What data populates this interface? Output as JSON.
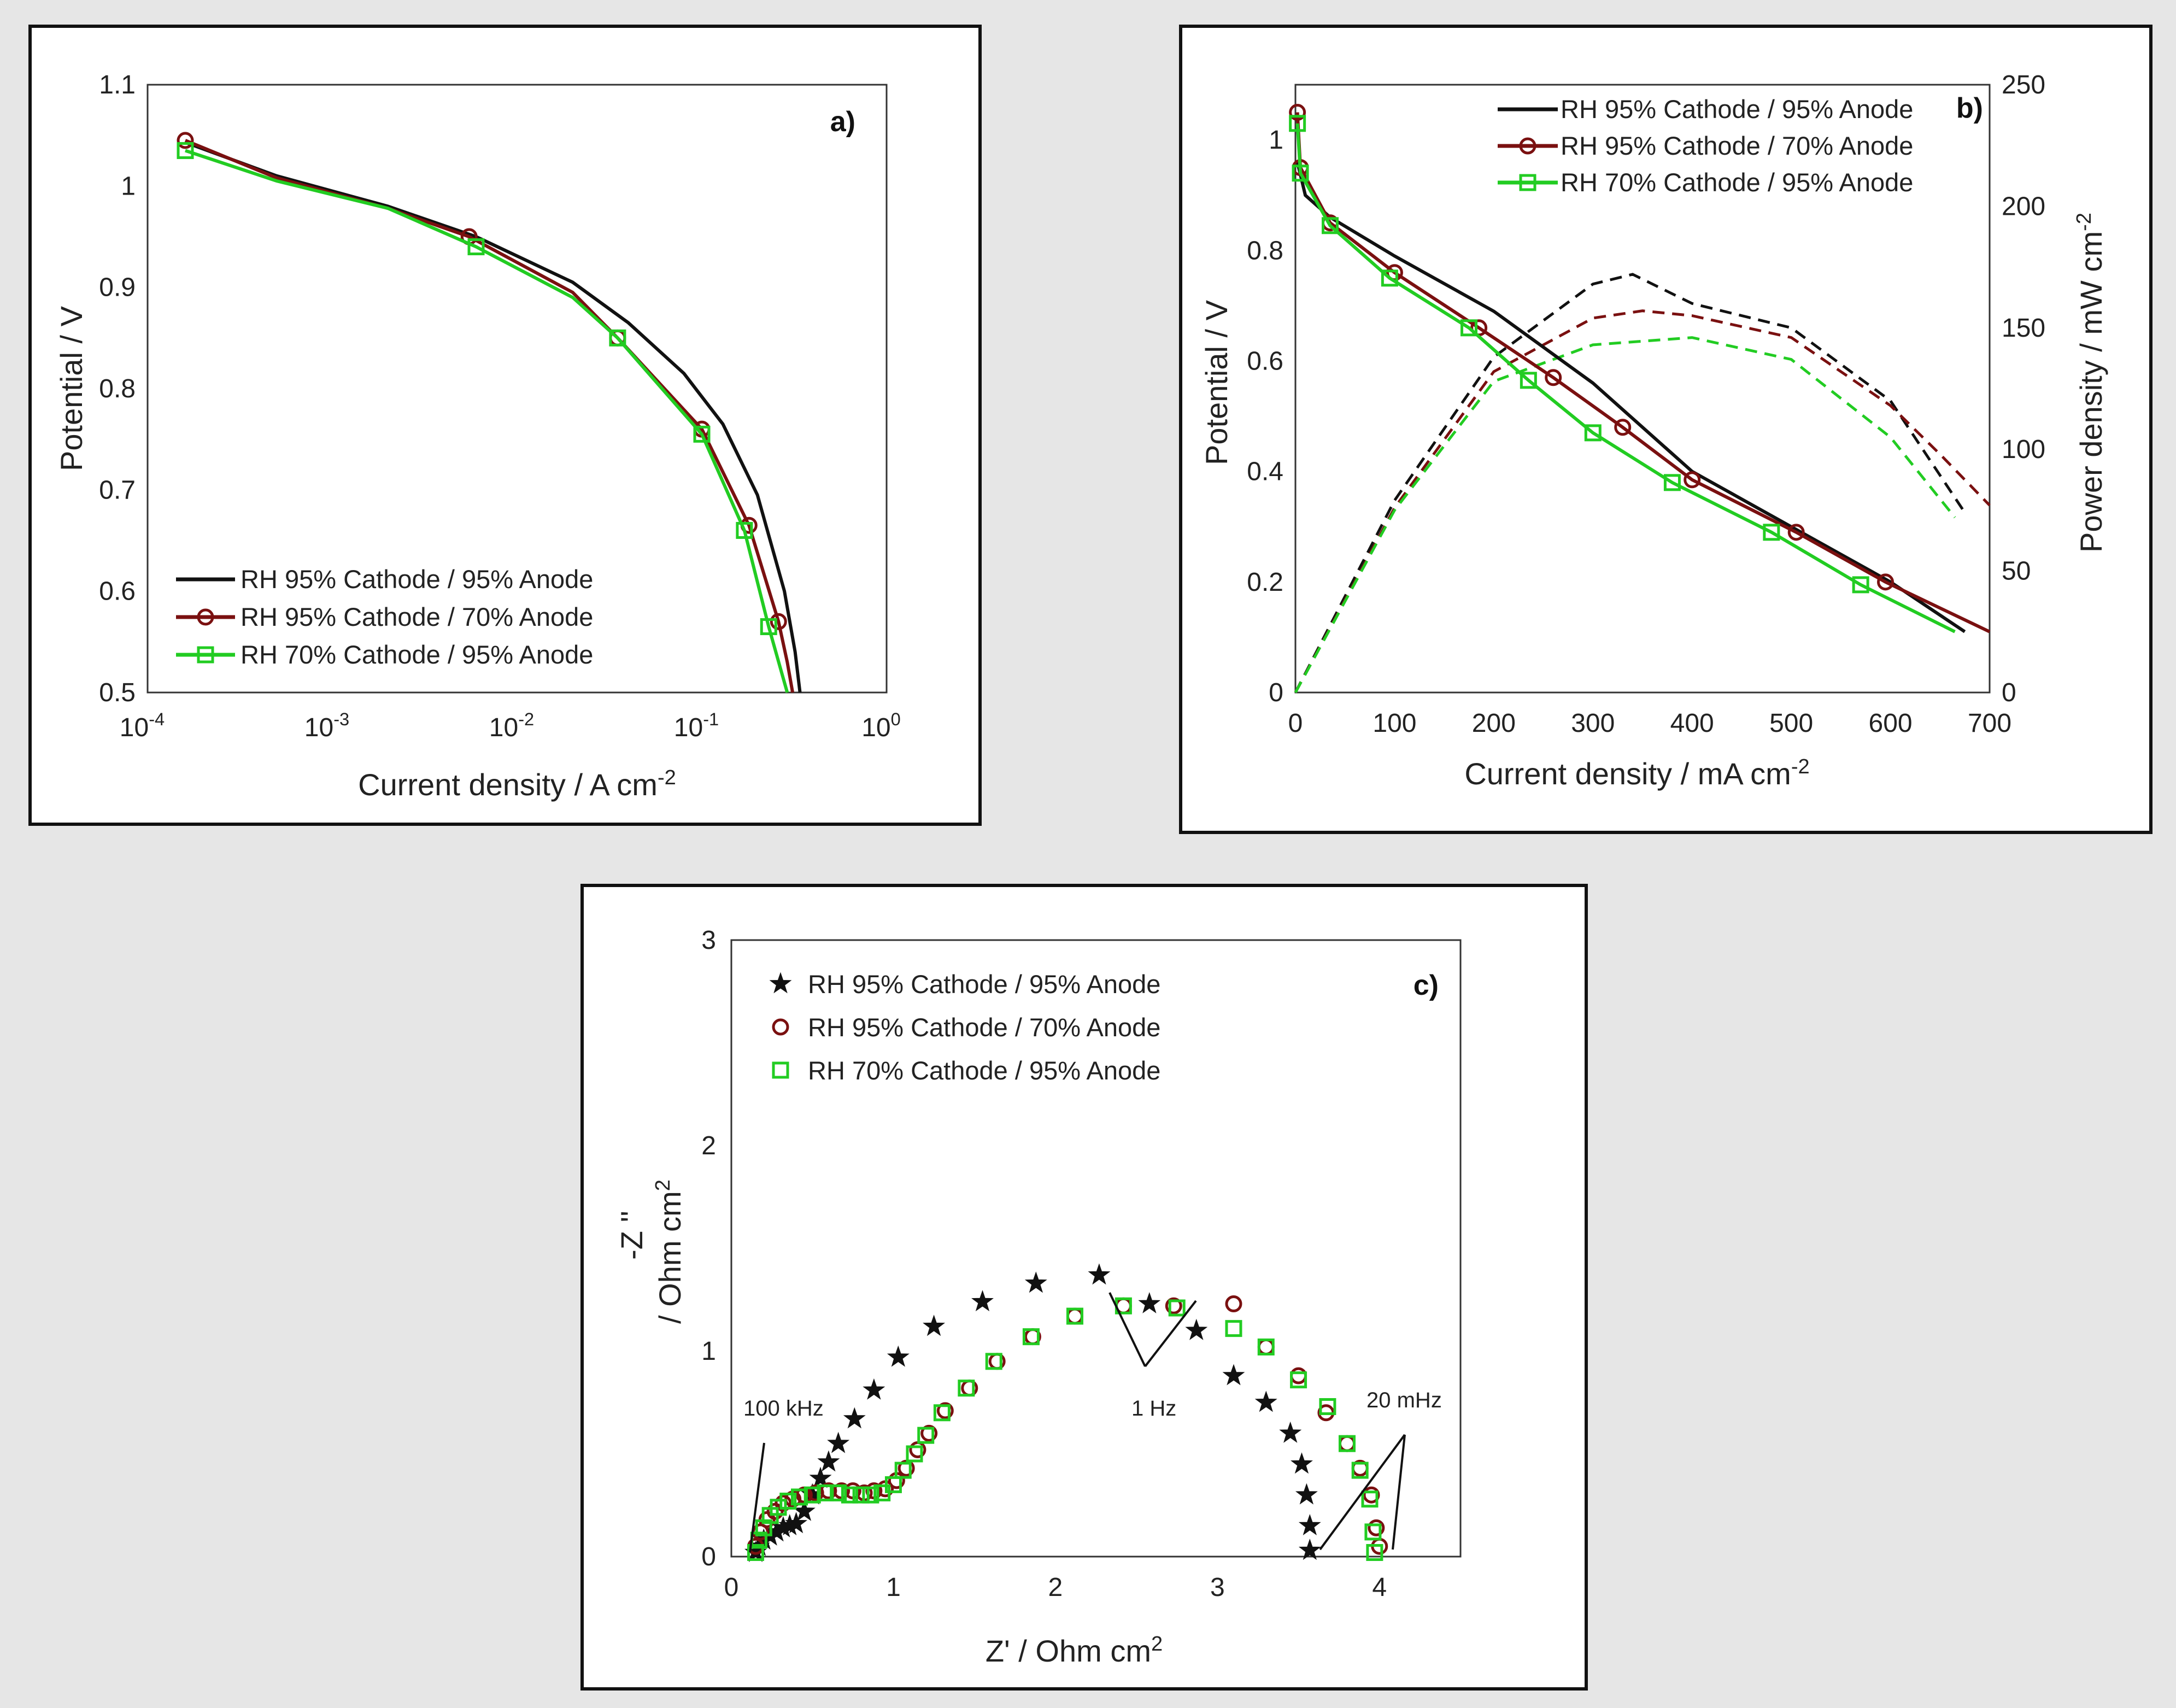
{
  "colors": {
    "series_black": "#111111",
    "series_darkred": "#7a1010",
    "series_green": "#22cc22",
    "grid": "#bdbdbd",
    "background": "#e6e6e6"
  },
  "chart_data": [
    {
      "id": "a",
      "type": "line",
      "panel_label": "a)",
      "x_scale": "log",
      "xlabel": "Current density / A cm",
      "xlabel_exp": "-2",
      "ylabel": "Potential / V",
      "xlim": [
        0.0001,
        1
      ],
      "ylim": [
        0.5,
        1.1
      ],
      "x_ticks": [
        {
          "base": "10",
          "exp": "-4"
        },
        {
          "base": "10",
          "exp": "-3"
        },
        {
          "base": "10",
          "exp": "-2"
        },
        {
          "base": "10",
          "exp": "-1"
        },
        {
          "base": "10",
          "exp": "0"
        }
      ],
      "y_ticks": [
        "0.5",
        "0.6",
        "0.7",
        "0.8",
        "0.9",
        "1",
        "1.1"
      ],
      "grid": true,
      "legend_position": "bottom-left",
      "series": [
        {
          "name": "RH 95% Cathode / 95% Anode",
          "color": "#111111",
          "marker": "none",
          "x": [
            0.00016,
            0.0005,
            0.002,
            0.006,
            0.02,
            0.04,
            0.08,
            0.13,
            0.2,
            0.28,
            0.32,
            0.34
          ],
          "y": [
            1.043,
            1.01,
            0.98,
            0.95,
            0.905,
            0.865,
            0.815,
            0.765,
            0.695,
            0.6,
            0.54,
            0.5
          ]
        },
        {
          "name": "RH 95% Cathode / 70% Anode",
          "color": "#7a1010",
          "marker": "circle",
          "x": [
            0.00016,
            0.0005,
            0.002,
            0.0055,
            0.02,
            0.035,
            0.1,
            0.18,
            0.26,
            0.29,
            0.31
          ],
          "y": [
            1.045,
            1.008,
            0.978,
            0.95,
            0.895,
            0.85,
            0.76,
            0.665,
            0.57,
            0.53,
            0.5
          ],
          "marker_x": [
            0.00016,
            0.0055,
            0.035,
            0.1,
            0.18,
            0.26
          ],
          "marker_y": [
            1.045,
            0.95,
            0.85,
            0.76,
            0.665,
            0.57
          ]
        },
        {
          "name": "RH 70% Cathode / 95% Anode",
          "color": "#22cc22",
          "marker": "square",
          "x": [
            0.00016,
            0.0005,
            0.002,
            0.006,
            0.02,
            0.035,
            0.1,
            0.17,
            0.23,
            0.27,
            0.29
          ],
          "y": [
            1.035,
            1.005,
            0.978,
            0.94,
            0.89,
            0.85,
            0.755,
            0.66,
            0.565,
            0.52,
            0.5
          ],
          "marker_x": [
            0.00016,
            0.006,
            0.035,
            0.1,
            0.17,
            0.23
          ],
          "marker_y": [
            1.035,
            0.94,
            0.85,
            0.755,
            0.66,
            0.565
          ]
        }
      ]
    },
    {
      "id": "b",
      "type": "line",
      "panel_label": "b)",
      "xlabel": "Current density / mA cm",
      "xlabel_exp": "-2",
      "ylabel": "Potential / V",
      "ylabel_right": "Power density / mW cm",
      "ylabel_right_exp": "-2",
      "xlim": [
        0,
        700
      ],
      "ylim": [
        0,
        1.1
      ],
      "ylim_right": [
        0,
        250
      ],
      "x_ticks": [
        "0",
        "100",
        "200",
        "300",
        "400",
        "500",
        "600",
        "700"
      ],
      "y_ticks": [
        "0",
        "0.2",
        "0.4",
        "0.6",
        "0.8",
        "1"
      ],
      "y_ticks_right": [
        "0",
        "50",
        "100",
        "150",
        "200",
        "250"
      ],
      "grid": true,
      "legend_position": "top-right",
      "series": [
        {
          "name": "RH 95% Cathode / 95% Anode",
          "color": "#111111",
          "marker": "none",
          "x": [
            2,
            10,
            35,
            100,
            200,
            300,
            400,
            500,
            600,
            675
          ],
          "y": [
            0.96,
            0.9,
            0.86,
            0.79,
            0.69,
            0.56,
            0.4,
            0.3,
            0.2,
            0.11
          ]
        },
        {
          "name": "RH 95% Cathode / 70% Anode",
          "color": "#7a1010",
          "marker": "circle",
          "x": [
            2,
            5,
            35,
            100,
            185,
            260,
            330,
            400,
            505,
            595,
            700
          ],
          "y": [
            1.05,
            0.95,
            0.85,
            0.76,
            0.66,
            0.57,
            0.48,
            0.385,
            0.29,
            0.2,
            0.11
          ],
          "marker_x": [
            2,
            5,
            35,
            100,
            185,
            260,
            330,
            400,
            505,
            595
          ],
          "marker_y": [
            1.05,
            0.95,
            0.85,
            0.76,
            0.66,
            0.57,
            0.48,
            0.385,
            0.29,
            0.2
          ]
        },
        {
          "name": "RH 70% Cathode / 95% Anode",
          "color": "#22cc22",
          "marker": "square",
          "x": [
            2,
            5,
            35,
            95,
            175,
            235,
            300,
            380,
            480,
            570,
            665
          ],
          "y": [
            1.03,
            0.94,
            0.845,
            0.75,
            0.66,
            0.565,
            0.47,
            0.38,
            0.29,
            0.195,
            0.11
          ],
          "marker_x": [
            2,
            5,
            35,
            95,
            175,
            235,
            300,
            380,
            480,
            570
          ],
          "marker_y": [
            1.03,
            0.94,
            0.845,
            0.75,
            0.66,
            0.565,
            0.47,
            0.38,
            0.29,
            0.195
          ]
        }
      ],
      "power_series": [
        {
          "name": "RH 95% Cathode / 95% Anode",
          "color": "#111111",
          "line": "dashed",
          "x": [
            0,
            100,
            200,
            300,
            340,
            400,
            500,
            600,
            675
          ],
          "y": [
            0,
            79,
            138,
            168,
            172,
            160,
            150,
            120,
            74
          ]
        },
        {
          "name": "RH 95% Cathode / 70% Anode",
          "color": "#7a1010",
          "line": "dashed",
          "x": [
            0,
            100,
            200,
            300,
            350,
            400,
            500,
            600,
            650,
            700
          ],
          "y": [
            0,
            76,
            132,
            154,
            157,
            155,
            146,
            118,
            98,
            77
          ]
        },
        {
          "name": "RH 70% Cathode / 95% Anode",
          "color": "#22cc22",
          "line": "dashed",
          "x": [
            0,
            100,
            200,
            300,
            400,
            500,
            600,
            665
          ],
          "y": [
            0,
            75,
            128,
            143,
            146,
            137,
            105,
            72
          ]
        }
      ]
    },
    {
      "id": "c",
      "type": "scatter",
      "panel_label": "c)",
      "xlabel": "Z' / Ohm cm",
      "xlabel_exp": "2",
      "ylabel_line1": "-Z ''",
      "ylabel_line2": "/ Ohm cm",
      "ylabel_exp": "2",
      "xlim": [
        0,
        4.5
      ],
      "ylim": [
        0,
        3
      ],
      "x_ticks": [
        "0",
        "1",
        "2",
        "3",
        "4"
      ],
      "y_ticks": [
        "0",
        "1",
        "2",
        "3"
      ],
      "grid": true,
      "legend_position": "top-left",
      "annotations": [
        "100 kHz",
        "1 Hz",
        "20 mHz"
      ],
      "series": [
        {
          "name": "RH 95% Cathode / 95% Anode",
          "color": "#111111",
          "marker": "star",
          "x": [
            0.15,
            0.17,
            0.2,
            0.24,
            0.28,
            0.32,
            0.36,
            0.4,
            0.45,
            0.5,
            0.55,
            0.6,
            0.66,
            0.76,
            0.88,
            1.03,
            1.25,
            1.55,
            1.88,
            2.27,
            2.58,
            2.87,
            3.1,
            3.3,
            3.45,
            3.52,
            3.55,
            3.57,
            3.57
          ],
          "y": [
            0.02,
            0.05,
            0.08,
            0.1,
            0.12,
            0.14,
            0.15,
            0.16,
            0.22,
            0.3,
            0.38,
            0.46,
            0.55,
            0.67,
            0.81,
            0.97,
            1.12,
            1.24,
            1.33,
            1.37,
            1.23,
            1.1,
            0.88,
            0.75,
            0.6,
            0.45,
            0.3,
            0.15,
            0.03
          ]
        },
        {
          "name": "RH 95% Cathode / 70% Anode",
          "color": "#7a1010",
          "marker": "circle",
          "x": [
            0.15,
            0.18,
            0.22,
            0.27,
            0.32,
            0.38,
            0.45,
            0.52,
            0.6,
            0.68,
            0.75,
            0.82,
            0.88,
            0.95,
            1.02,
            1.08,
            1.15,
            1.22,
            1.32,
            1.47,
            1.64,
            1.86,
            2.12,
            2.42,
            2.73,
            3.1,
            3.3,
            3.5,
            3.67,
            3.8,
            3.88,
            3.95,
            3.98,
            4.0
          ],
          "y": [
            0.05,
            0.12,
            0.18,
            0.22,
            0.26,
            0.28,
            0.3,
            0.31,
            0.32,
            0.32,
            0.32,
            0.31,
            0.32,
            0.33,
            0.37,
            0.43,
            0.52,
            0.6,
            0.71,
            0.82,
            0.95,
            1.07,
            1.17,
            1.22,
            1.22,
            1.23,
            1.02,
            0.88,
            0.7,
            0.55,
            0.43,
            0.3,
            0.14,
            0.05
          ]
        },
        {
          "name": "RH 70% Cathode / 95% Anode",
          "color": "#22cc22",
          "marker": "square",
          "x": [
            0.15,
            0.17,
            0.2,
            0.24,
            0.29,
            0.35,
            0.42,
            0.5,
            0.58,
            0.66,
            0.73,
            0.8,
            0.86,
            0.93,
            1.0,
            1.06,
            1.13,
            1.2,
            1.3,
            1.45,
            1.62,
            1.85,
            2.12,
            2.42,
            2.75,
            3.1,
            3.3,
            3.5,
            3.68,
            3.8,
            3.88,
            3.94,
            3.96,
            3.97
          ],
          "y": [
            0.02,
            0.08,
            0.14,
            0.2,
            0.24,
            0.27,
            0.29,
            0.3,
            0.31,
            0.31,
            0.3,
            0.3,
            0.3,
            0.31,
            0.35,
            0.42,
            0.5,
            0.59,
            0.7,
            0.82,
            0.95,
            1.07,
            1.17,
            1.22,
            1.21,
            1.11,
            1.02,
            0.86,
            0.73,
            0.55,
            0.42,
            0.28,
            0.12,
            0.02
          ]
        }
      ]
    }
  ]
}
